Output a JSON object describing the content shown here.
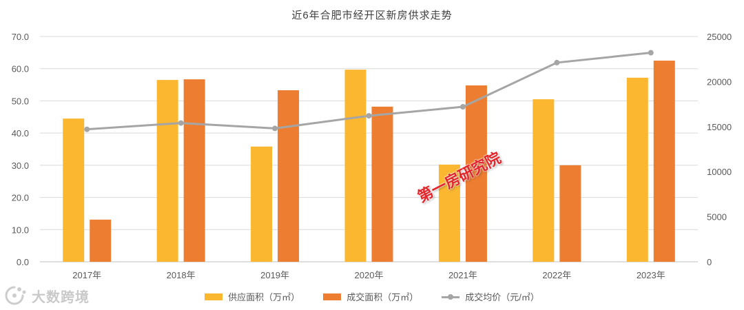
{
  "chart_data": {
    "type": "bar",
    "title": "近6年合肥市经开区新房供求走势",
    "categories": [
      "2017年",
      "2018年",
      "2019年",
      "2020年",
      "2021年",
      "2022年",
      "2023年"
    ],
    "series": [
      {
        "name": "供应面积（万㎡）",
        "type": "bar",
        "axis": "left",
        "color": "#FBB730",
        "values": [
          44.5,
          56.5,
          35.8,
          59.7,
          30.2,
          50.5,
          57.2
        ]
      },
      {
        "name": "成交面积（万㎡）",
        "type": "bar",
        "axis": "left",
        "color": "#ED7D31",
        "values": [
          13.1,
          56.7,
          53.3,
          48.2,
          54.8,
          30.0,
          62.5
        ]
      },
      {
        "name": "成交均价（元/㎡）",
        "type": "line",
        "axis": "right",
        "color": "#A5A5A5",
        "values": [
          14700,
          15400,
          14800,
          16200,
          17200,
          22100,
          23200
        ]
      }
    ],
    "y_left": {
      "range": [
        0,
        70
      ],
      "tick_values": [
        0,
        10,
        20,
        30,
        40,
        50,
        60,
        70
      ],
      "tick_labels": [
        "0.0",
        "10.0",
        "20.0",
        "30.0",
        "40.0",
        "50.0",
        "60.0",
        "70.0"
      ]
    },
    "y_right": {
      "range": [
        0,
        25000
      ],
      "tick_values": [
        0,
        5000,
        10000,
        15000,
        20000,
        25000
      ],
      "tick_labels": [
        "0",
        "5000",
        "10000",
        "15000",
        "20000",
        "25000"
      ]
    },
    "grid": true,
    "legend": "bottom"
  },
  "watermarks": {
    "stamp_text": "第一房研究院",
    "stamp_color": "#E3262B",
    "brand_text": "大数跨境",
    "brand_icon": "brand-logo-icon"
  }
}
